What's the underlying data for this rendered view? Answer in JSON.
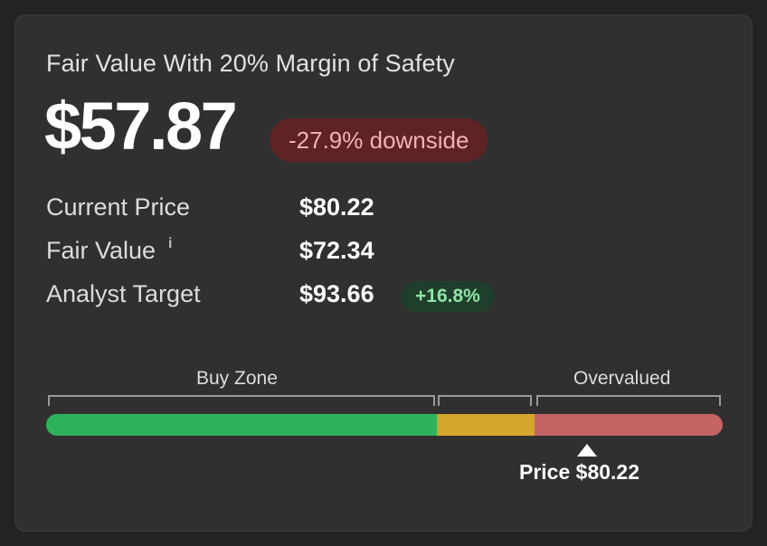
{
  "card": {
    "title": "Fair Value With 20% Margin of Safety",
    "margin_value": "$57.87",
    "downside_badge": "-27.9% downside"
  },
  "metrics": [
    {
      "label": "Current Price",
      "value": "$80.22"
    },
    {
      "label": "Fair Value",
      "value": "$72.34",
      "info_icon": "i"
    },
    {
      "label": "Analyst Target",
      "value": "$93.66",
      "badge": "+16.8%"
    }
  ],
  "zones": {
    "buy_label": "Buy Zone",
    "overvalued_label": "Overvalued"
  },
  "bar": {
    "segments": [
      {
        "name": "buy",
        "color": "#2eb35c"
      },
      {
        "name": "fair",
        "color": "#d6a52b"
      },
      {
        "name": "overvalued",
        "color": "#c46465"
      }
    ],
    "marker_label": "Price $80.22"
  },
  "colors": {
    "background": "#232323",
    "card": "#303030",
    "downside_bg": "#5e2325",
    "downside_text": "#f2b3b3",
    "upside_bg": "#1f3f2c",
    "upside_text": "#8fe3a6"
  }
}
